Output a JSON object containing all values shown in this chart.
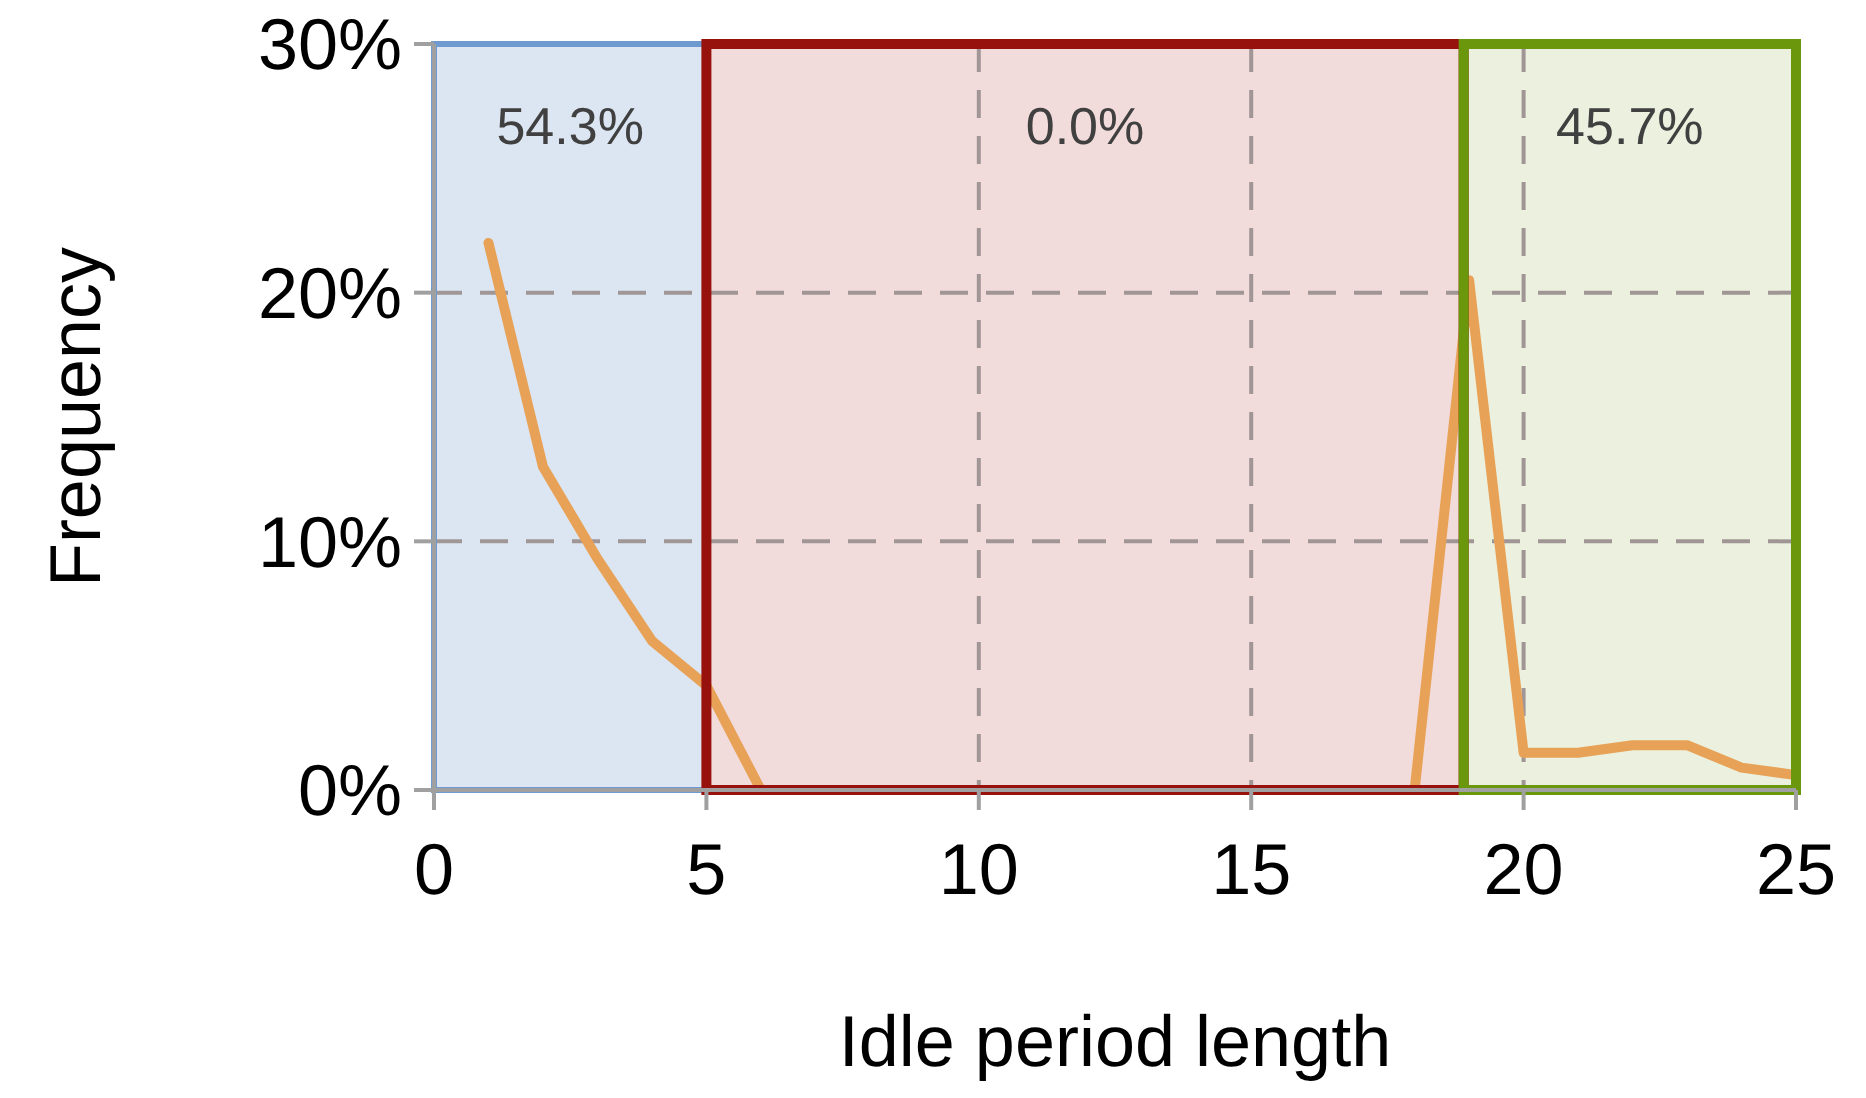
{
  "chart_data": {
    "type": "line",
    "xlabel": "Idle period length",
    "ylabel": "Frequency",
    "x": [
      1,
      2,
      3,
      4,
      5,
      6,
      7,
      8,
      9,
      10,
      11,
      12,
      13,
      14,
      15,
      16,
      17,
      18,
      19,
      20,
      21,
      22,
      23,
      24,
      25
    ],
    "series": [
      {
        "color": "#e8a258",
        "values": [
          22.0,
          13.0,
          9.3,
          6.0,
          4.2,
          0,
          null,
          null,
          null,
          null,
          null,
          null,
          null,
          null,
          null,
          null,
          null,
          0,
          20.5,
          1.5,
          1.5,
          1.8,
          1.8,
          0.9,
          0.6
        ]
      }
    ],
    "xlim": [
      0,
      25
    ],
    "xticks": [
      0,
      5,
      10,
      15,
      20,
      25
    ],
    "ylim": [
      0,
      30
    ],
    "yticks": [
      {
        "value": 0,
        "label": "0%"
      },
      {
        "value": 10,
        "label": "10%"
      },
      {
        "value": 20,
        "label": "20%"
      },
      {
        "value": 30,
        "label": "30%"
      }
    ],
    "grid": true,
    "line_style": "solid",
    "marker": "none",
    "bands": [
      {
        "axis": "x",
        "from": 0,
        "to": 5,
        "label": "54.3%",
        "color": "#dce6f2"
      },
      {
        "axis": "x",
        "from": 5,
        "to": 18.9,
        "label": "0.0%",
        "color": "#f2dcdb"
      },
      {
        "axis": "x",
        "from": 18.9,
        "to": 25,
        "label": "45.7%",
        "color": "#ebf1de"
      }
    ]
  }
}
